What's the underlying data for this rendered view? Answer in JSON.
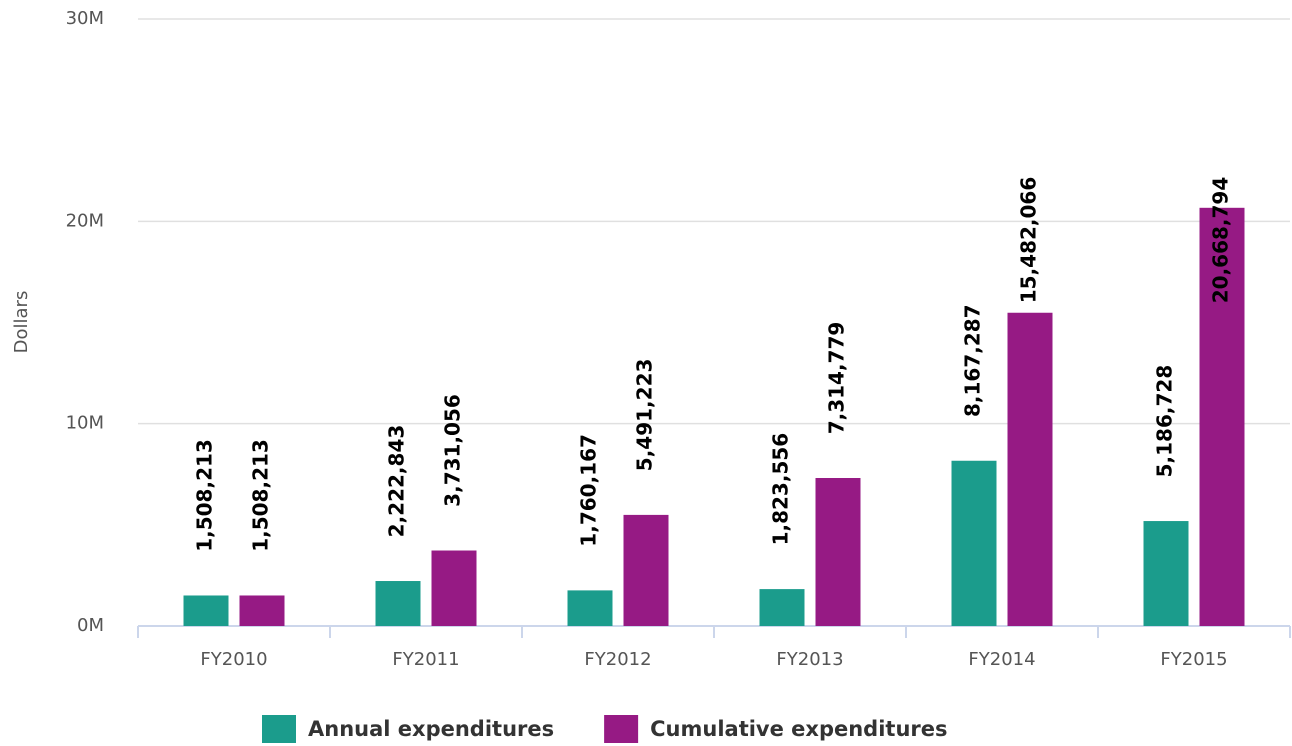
{
  "chart_data": {
    "type": "bar",
    "y_axis_label": "Dollars",
    "categories": [
      "FY2010",
      "FY2011",
      "FY2012",
      "FY2013",
      "FY2014",
      "FY2015"
    ],
    "series": [
      {
        "name": "Annual expenditures",
        "color": "#1b9c8c",
        "values": [
          1508213,
          2222843,
          1760167,
          1823556,
          8167287,
          5186728
        ],
        "value_labels": [
          "1,508,213",
          "2,222,843",
          "1,760,167",
          "1,823,556",
          "8,167,287",
          "5,186,728"
        ]
      },
      {
        "name": "Cumulative expenditures",
        "color": "#961a84",
        "values": [
          1508213,
          3731056,
          5491223,
          7314779,
          15482066,
          20668794
        ],
        "value_labels": [
          "1,508,213",
          "3,731,056",
          "5,491,223",
          "7,314,779",
          "15,482,066",
          "20,668,794"
        ]
      }
    ],
    "ylim": [
      0,
      30000000
    ],
    "yticks": [
      {
        "value": 0,
        "label": "0M"
      },
      {
        "value": 10000000,
        "label": "10M"
      },
      {
        "value": 20000000,
        "label": "20M"
      },
      {
        "value": 30000000,
        "label": "30M"
      }
    ],
    "grid": true,
    "legend": "bottom"
  }
}
